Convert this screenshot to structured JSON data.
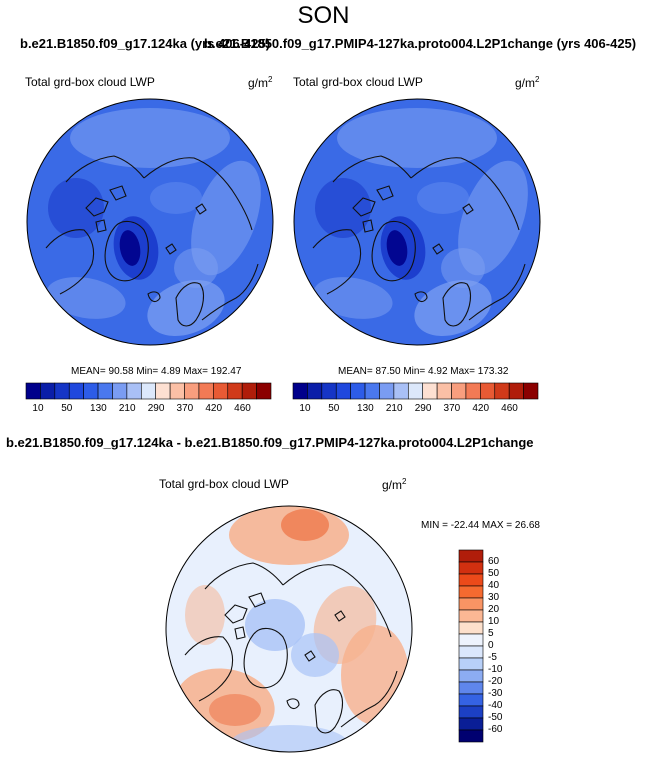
{
  "season": "SON",
  "top_titles": {
    "left": "b.e21.B1850.f09_g17.124ka (yrs 406-425)",
    "right": "b.e21.B1850.f09_g17.PMIP4-127ka.proto004.L2P1change (yrs 406-425)"
  },
  "panels": {
    "left": {
      "variable": "Total grd-box cloud LWP",
      "units_base": "g/m",
      "units_exp": "2",
      "stats": "MEAN=  90.58  Min=   4.89  Max= 192.47",
      "legend_labels": [
        "10",
        "50",
        "130",
        "210",
        "290",
        "370",
        "420",
        "460"
      ]
    },
    "right": {
      "variable": "Total grd-box cloud LWP",
      "units_base": "g/m",
      "units_exp": "2",
      "stats": "MEAN=  87.50  Min=   4.92  Max= 173.32",
      "legend_labels": [
        "10",
        "50",
        "130",
        "210",
        "290",
        "370",
        "420",
        "460"
      ]
    },
    "diff": {
      "title": "b.e21.B1850.f09_g17.124ka - b.e21.B1850.f09_g17.PMIP4-127ka.proto004.L2P1change",
      "variable": "Total grd-box cloud LWP",
      "units_base": "g/m",
      "units_exp": "2",
      "stats": "MIN = -22.44 MAX =  26.68",
      "legend_labels": [
        "60",
        "50",
        "40",
        "30",
        "20",
        "10",
        "5",
        "0",
        "-5",
        "-10",
        "-20",
        "-30",
        "-40",
        "-50",
        "-60"
      ]
    }
  },
  "colors": {
    "abs_scale": [
      "#00008b",
      "#0a1ea8",
      "#1535c6",
      "#1f48dd",
      "#2d5ce8",
      "#4a78ee",
      "#7a9cf2",
      "#a9c0f6",
      "#dce8fb",
      "#fde0d2",
      "#fbc0a6",
      "#f89e7e",
      "#f27a55",
      "#e85a34",
      "#d03a1a",
      "#b01d0a",
      "#8b0000"
    ],
    "diff_scale": [
      "#b01d0a",
      "#d23010",
      "#ec4a1a",
      "#f56a30",
      "#f99464",
      "#fbb794",
      "#fde0cc",
      "#eef3fd",
      "#dbe7fc",
      "#b8d0f8",
      "#8cacf2",
      "#5f86ec",
      "#3563e4",
      "#1c40c4",
      "#0a1e96",
      "#000070"
    ],
    "abs_base": "#3a6ae6",
    "abs_dark": "#1a3ccc",
    "abs_light": "#7fa2f2",
    "diff_base": "#e8f0fd",
    "diff_warm": "#f7b08c",
    "diff_hot": "#ef7a4e",
    "diff_cool": "#a9c3f6"
  }
}
